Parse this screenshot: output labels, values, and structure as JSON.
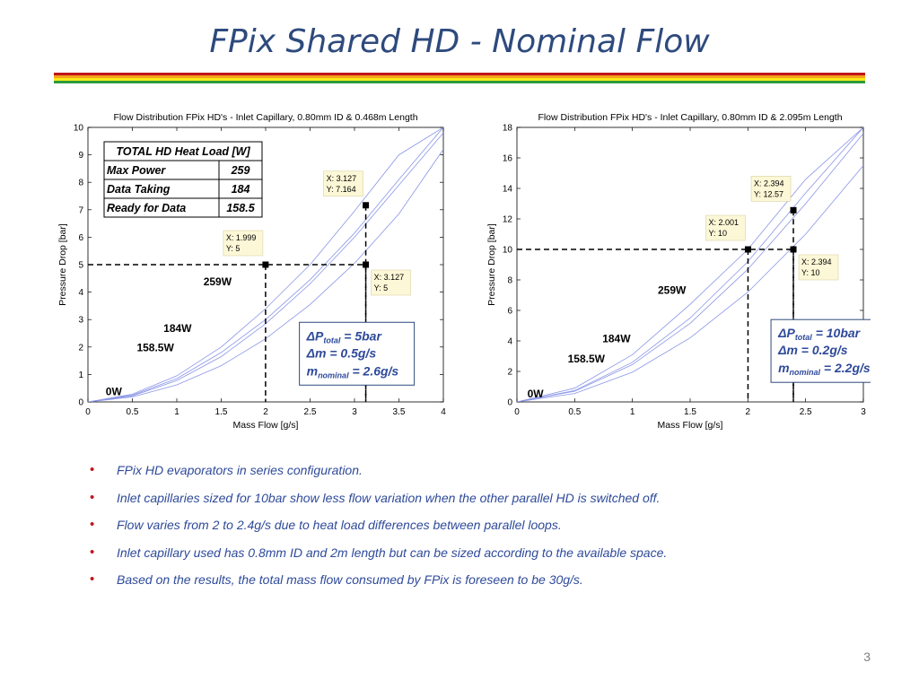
{
  "slide": {
    "title": "FPix Shared HD - Nominal Flow",
    "page_number": "3",
    "stripe_colors": [
      "#c0151c",
      "#f5a21b",
      "#f7e91a",
      "#2e9b3c"
    ]
  },
  "load_table": {
    "header": "TOTAL HD Heat Load [W]",
    "rows": [
      {
        "label": "Max Power",
        "value": "259"
      },
      {
        "label": "Data Taking",
        "value": "184"
      },
      {
        "label": "Ready for Data",
        "value": "158.5"
      }
    ]
  },
  "bullets": [
    "FPix HD evaporators in series configuration.",
    "Inlet capillaries sized for 10bar show less flow variation when the other parallel HD is switched off.",
    "Flow varies from 2 to 2.4g/s due to heat load differences between parallel loops.",
    "Inlet capillary used has 0.8mm ID and 2m length but can be sized according to the available space.",
    "Based on the results, the total mass flow consumed by FPix is foreseen to be 30g/s."
  ],
  "chart_data": [
    {
      "type": "line",
      "title": "Flow Distribution FPix HD's - Inlet Capillary, 0.80mm ID & 0.468m Length",
      "xlabel": "Mass Flow [g/s]",
      "ylabel": "Pressure Drop [bar]",
      "xlim": [
        0,
        4
      ],
      "ylim": [
        0,
        10
      ],
      "xticks": [
        0,
        0.5,
        1,
        1.5,
        2,
        2.5,
        3,
        3.5,
        4
      ],
      "xtick_labels": [
        "0",
        "0.5",
        "1",
        "1.5",
        "2",
        "2.5",
        "3",
        "3.5",
        "4"
      ],
      "yticks": [
        0,
        1,
        2,
        3,
        4,
        5,
        6,
        7,
        8,
        9,
        10
      ],
      "ytick_labels": [
        "0",
        "1",
        "2",
        "3",
        "4",
        "5",
        "6",
        "7",
        "8",
        "9",
        "10"
      ],
      "series": [
        {
          "name": "259W",
          "x": [
            0,
            0.5,
            1,
            1.5,
            2,
            2.5,
            3,
            3.5,
            4
          ],
          "y": [
            0,
            0.18,
            0.62,
            1.32,
            2.3,
            3.55,
            5.05,
            6.85,
            9.2
          ]
        },
        {
          "name": "184W",
          "x": [
            0,
            0.5,
            1,
            1.5,
            2,
            2.5,
            3,
            3.5,
            4
          ],
          "y": [
            0,
            0.22,
            0.78,
            1.65,
            2.85,
            4.3,
            6.0,
            7.9,
            9.8
          ]
        },
        {
          "name": "158.5W",
          "x": [
            0,
            0.5,
            1,
            1.5,
            2,
            2.5,
            3,
            3.5,
            4
          ],
          "y": [
            0,
            0.25,
            0.85,
            1.8,
            3.0,
            4.45,
            6.15,
            8.1,
            10.0
          ]
        },
        {
          "name": "0W",
          "x": [
            0,
            0.5,
            1,
            1.5,
            2,
            2.5,
            3,
            3.5,
            4
          ],
          "y": [
            0,
            0.28,
            0.95,
            2.0,
            3.4,
            5.0,
            6.95,
            9.0,
            10.0
          ]
        }
      ],
      "series_labels": [
        {
          "text": "259W",
          "x": 1.3,
          "y": 4.25
        },
        {
          "text": "184W",
          "x": 0.85,
          "y": 2.55
        },
        {
          "text": "158.5W",
          "x": 0.55,
          "y": 1.85
        },
        {
          "text": "0W",
          "x": 0.2,
          "y": 0.25
        }
      ],
      "points": [
        {
          "x": 1.999,
          "y": 5,
          "label_x": "X: 1.999",
          "label_y": "Y: 5",
          "box": "above"
        },
        {
          "x": 3.127,
          "y": 7.164,
          "label_x": "X: 3.127",
          "label_y": "Y: 7.164",
          "box": "above"
        },
        {
          "x": 3.127,
          "y": 5,
          "label_x": "X: 3.127",
          "label_y": "Y: 5",
          "box": "below"
        }
      ],
      "annotation": {
        "line1": "ΔP",
        "sub1": "total",
        "line1b": " = 5bar",
        "line2": "Δm = 0.5g/s",
        "line3": "m",
        "sub3": "nominal",
        "line3b": " = 2.6g/s"
      }
    },
    {
      "type": "line",
      "title": "Flow Distribution FPix HD's - Inlet Capillary, 0.80mm ID & 2.095m Length",
      "xlabel": "Mass Flow [g/s]",
      "ylabel": "Pressure Drop [bar]",
      "xlim": [
        0,
        3
      ],
      "ylim": [
        0,
        18
      ],
      "xticks": [
        0,
        0.5,
        1,
        1.5,
        2,
        2.5,
        3
      ],
      "xtick_labels": [
        "0",
        "0.5",
        "1",
        "1.5",
        "2",
        "2.5",
        "3"
      ],
      "yticks": [
        0,
        2,
        4,
        6,
        8,
        10,
        12,
        14,
        16,
        18
      ],
      "ytick_labels": [
        "0",
        "2",
        "4",
        "6",
        "8",
        "10",
        "12",
        "14",
        "16",
        "18"
      ],
      "series": [
        {
          "name": "259W",
          "x": [
            0,
            0.5,
            1,
            1.5,
            2,
            2.5,
            3
          ],
          "y": [
            0,
            0.55,
            1.95,
            4.2,
            7.2,
            11.0,
            15.5
          ]
        },
        {
          "name": "184W",
          "x": [
            0,
            0.5,
            1,
            1.5,
            2,
            2.5,
            3
          ],
          "y": [
            0,
            0.7,
            2.45,
            5.15,
            8.7,
            13.0,
            17.6
          ]
        },
        {
          "name": "158.5W",
          "x": [
            0,
            0.5,
            1,
            1.5,
            2,
            2.5,
            3
          ],
          "y": [
            0,
            0.75,
            2.6,
            5.5,
            9.2,
            13.7,
            18.0
          ]
        },
        {
          "name": "0W",
          "x": [
            0,
            0.5,
            1,
            1.5,
            2,
            2.5,
            3
          ],
          "y": [
            0,
            0.9,
            3.1,
            6.4,
            10.0,
            14.6,
            18.0
          ]
        }
      ],
      "series_labels": [
        {
          "text": "259W",
          "x": 1.22,
          "y": 7.1
        },
        {
          "text": "184W",
          "x": 0.74,
          "y": 3.9
        },
        {
          "text": "158.5W",
          "x": 0.44,
          "y": 2.6
        },
        {
          "text": "0W",
          "x": 0.09,
          "y": 0.3
        }
      ],
      "points": [
        {
          "x": 2.001,
          "y": 10,
          "label_x": "X: 2.001",
          "label_y": "Y: 10",
          "box": "above"
        },
        {
          "x": 2.394,
          "y": 12.57,
          "label_x": "X: 2.394",
          "label_y": "Y: 12.57",
          "box": "above"
        },
        {
          "x": 2.394,
          "y": 10,
          "label_x": "X: 2.394",
          "label_y": "Y: 10",
          "box": "below"
        }
      ],
      "annotation": {
        "line1": "ΔP",
        "sub1": "total",
        "line1b": " = 10bar",
        "line2": "Δm = 0.2g/s",
        "line3": "m",
        "sub3": "nominal",
        "line3b": " = 2.2g/s"
      }
    }
  ]
}
